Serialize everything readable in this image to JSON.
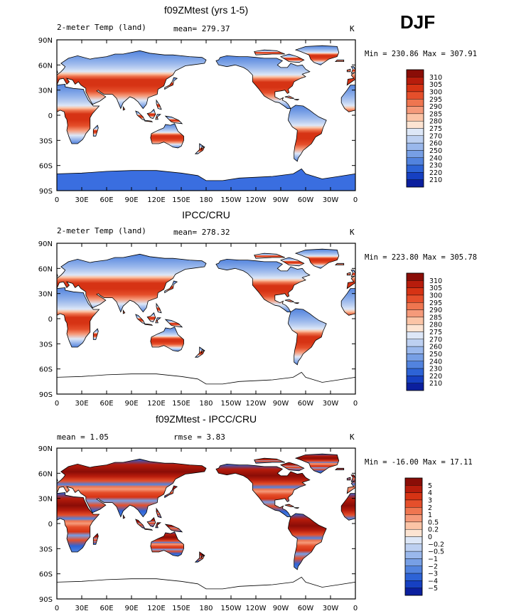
{
  "season": "DJF",
  "panels": [
    {
      "title": "f09ZMtest (yrs 1-5)",
      "left_label": "2-meter Temp (land)",
      "center_label": "mean= 279.37",
      "units": "K",
      "min_max": "Min = 230.86 Max = 307.91",
      "type": "temp",
      "antarctica_filled": true
    },
    {
      "title": "IPCC/CRU",
      "left_label": "2-meter Temp (land)",
      "center_label": "mean= 278.32",
      "units": "K",
      "min_max": "Min = 223.80 Max = 305.78",
      "type": "temp",
      "antarctica_filled": false
    },
    {
      "title": "f09ZMtest - IPCC/CRU",
      "left_label": "mean =     1.05",
      "center_label": "rmse =    3.83",
      "units": "K",
      "min_max": "Min = -16.00 Max =  17.11",
      "type": "diff",
      "antarctica_filled": false
    }
  ],
  "lat_ticks": [
    "90N",
    "60N",
    "30N",
    "0",
    "30S",
    "60S",
    "90S"
  ],
  "lon_ticks": [
    "0",
    "30E",
    "60E",
    "90E",
    "120E",
    "150E",
    "180",
    "150W",
    "120W",
    "90W",
    "60W",
    "30W",
    "0"
  ],
  "temp_legend": {
    "labels": [
      "310",
      "305",
      "300",
      "295",
      "290",
      "285",
      "280",
      "275",
      "270",
      "260",
      "250",
      "240",
      "230",
      "220",
      "210"
    ],
    "colors": [
      "#8a0d07",
      "#b71c0c",
      "#d63314",
      "#e54f2b",
      "#ef7650",
      "#f59a7a",
      "#fbc4a6",
      "#fde4d2",
      "#dde7f7",
      "#bdd0f1",
      "#9ab8ec",
      "#779fe5",
      "#5283de",
      "#2d63d6",
      "#1640c2",
      "#0b1f9e"
    ]
  },
  "diff_legend": {
    "labels": [
      "5",
      "4",
      "3",
      "2",
      "1",
      "0.5",
      "0.2",
      "0",
      "−0.2",
      "−0.5",
      "−1",
      "−2",
      "−3",
      "−4",
      "−5"
    ],
    "colors": [
      "#8a0d07",
      "#b71c0c",
      "#d63314",
      "#e54f2b",
      "#ef7650",
      "#f59a7a",
      "#fbc4a6",
      "#fde4d2",
      "#dde7f7",
      "#bdd0f1",
      "#9ab8ec",
      "#779fe5",
      "#5283de",
      "#2d63d6",
      "#1640c2",
      "#0b1f9e"
    ]
  }
}
